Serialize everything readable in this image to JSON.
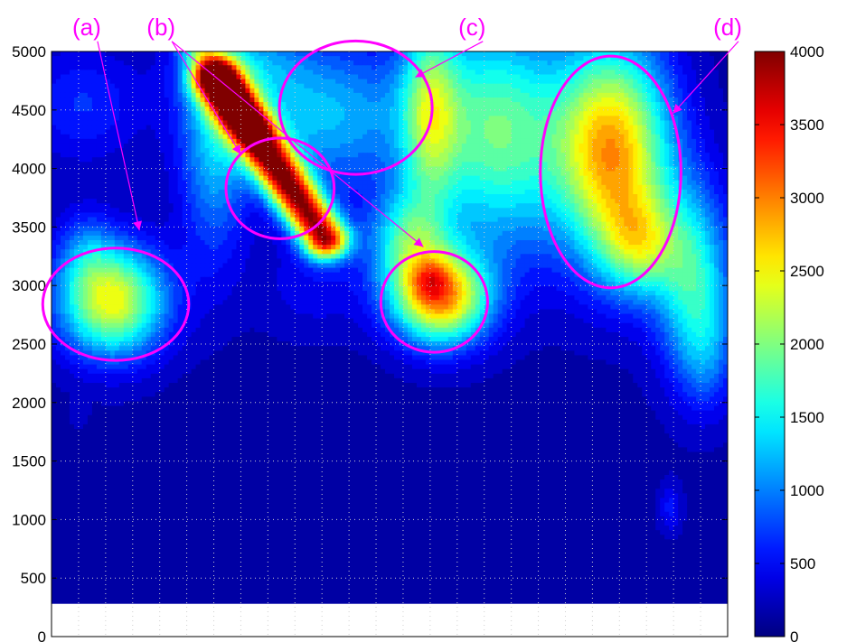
{
  "chart_data": {
    "type": "heatmap",
    "colormap": "jet",
    "title": "",
    "xlabel": "",
    "ylabel": "",
    "ylim": [
      0,
      5000
    ],
    "y_ticks": [
      0,
      500,
      1000,
      1500,
      2000,
      2500,
      3000,
      3500,
      4000,
      4500,
      5000
    ],
    "colorbar": {
      "range": [
        0,
        4000
      ],
      "ticks": [
        0,
        500,
        1000,
        1500,
        2000,
        2500,
        3000,
        3500,
        4000
      ]
    },
    "grid": true,
    "x_gridlines": 24,
    "data_floor": 280,
    "background_value": 150,
    "hotspots": [
      {
        "x": 0.09,
        "y": 2870,
        "sx": 0.055,
        "sy": 330,
        "amp": 2300
      },
      {
        "x": 0.045,
        "y": 4550,
        "sx": 0.06,
        "sy": 350,
        "amp": 500
      },
      {
        "x": 0.24,
        "y": 4150,
        "sx": 0.035,
        "sy": 700,
        "amp": 900
      },
      {
        "x": 0.05,
        "y": 3300,
        "sx": 0.03,
        "sy": 250,
        "amp": 500
      },
      {
        "x": 0.4,
        "y": 4450,
        "sx": 0.11,
        "sy": 450,
        "amp": 1100
      },
      {
        "x": 0.28,
        "y": 4900,
        "sx": 0.06,
        "sy": 250,
        "amp": 700
      },
      {
        "x": 0.56,
        "y": 4500,
        "sx": 0.03,
        "sy": 600,
        "amp": 1400
      },
      {
        "x": 0.525,
        "y": 3400,
        "sx": 0.04,
        "sy": 300,
        "amp": 1300
      },
      {
        "x": 0.575,
        "y": 2900,
        "sx": 0.05,
        "sy": 280,
        "amp": 2700
      },
      {
        "x": 0.56,
        "y": 3050,
        "sx": 0.02,
        "sy": 120,
        "amp": 600
      },
      {
        "x": 0.66,
        "y": 4300,
        "sx": 0.07,
        "sy": 700,
        "amp": 1700
      },
      {
        "x": 0.83,
        "y": 4150,
        "sx": 0.06,
        "sy": 650,
        "amp": 2700
      },
      {
        "x": 0.87,
        "y": 3350,
        "sx": 0.04,
        "sy": 300,
        "amp": 1300
      },
      {
        "x": 0.95,
        "y": 3050,
        "sx": 0.04,
        "sy": 550,
        "amp": 1400
      },
      {
        "x": 0.97,
        "y": 2400,
        "sx": 0.03,
        "sy": 350,
        "amp": 500
      },
      {
        "x": 0.915,
        "y": 1100,
        "sx": 0.012,
        "sy": 150,
        "amp": 400
      },
      {
        "x": 0.04,
        "y": 1900,
        "sx": 0.01,
        "sy": 80,
        "amp": 150
      },
      {
        "x": 0.39,
        "y": 3000,
        "sx": 0.06,
        "sy": 300,
        "amp": 300
      }
    ],
    "ridges": [
      {
        "x1": 0.245,
        "y1": 4750,
        "x2": 0.405,
        "y2": 3400,
        "width": 0.024,
        "amp": 3600
      },
      {
        "x1": 0.215,
        "y1": 5050,
        "x2": 0.3,
        "y2": 4350,
        "width": 0.02,
        "amp": 1000
      }
    ],
    "ellipse_annotations": [
      {
        "label": "(a)",
        "cx": 0.095,
        "cy": 2840,
        "rx": 0.108,
        "ry": 480
      },
      {
        "label": "(b)",
        "cx": 0.338,
        "cy": 3830,
        "rx": 0.08,
        "ry": 430
      },
      {
        "label": "(c)",
        "cx": 0.45,
        "cy": 4520,
        "rx": 0.113,
        "ry": 570
      },
      {
        "label": "(d)",
        "cx": 0.827,
        "cy": 3970,
        "rx": 0.104,
        "ry": 990
      },
      {
        "label": "",
        "cx": 0.566,
        "cy": 2860,
        "rx": 0.079,
        "ry": 430
      }
    ],
    "arrow_annotations": [
      {
        "from_label": "(a)",
        "to_x": 0.13,
        "to_y": 3470
      },
      {
        "from_label": "(b)",
        "to_x": 0.28,
        "to_y": 4120
      },
      {
        "from_label": "(b)",
        "to_x": 0.55,
        "to_y": 3330
      },
      {
        "from_label": "(c)",
        "to_x": 0.538,
        "to_y": 4780
      },
      {
        "from_label": "(d)",
        "to_x": 0.919,
        "to_y": 4470
      }
    ],
    "annotation_color": "#ff00ff",
    "annotation_labels": [
      {
        "text": "(a)",
        "x": 0.052,
        "y": 5210
      },
      {
        "text": "(b)",
        "x": 0.162,
        "y": 5210
      },
      {
        "text": "(c)",
        "x": 0.622,
        "y": 5210
      },
      {
        "text": "(d)",
        "x": 1.0,
        "y": 5210
      }
    ]
  }
}
